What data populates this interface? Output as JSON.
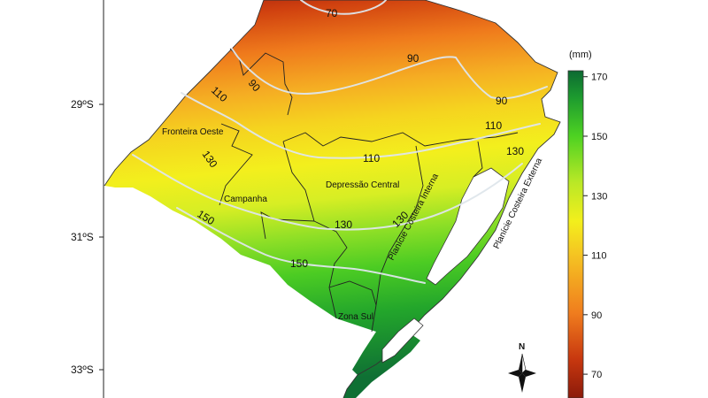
{
  "map": {
    "latitude_labels": [
      "29ºS",
      "31ºS",
      "33ºS"
    ],
    "isolines": [
      "70",
      "90",
      "90",
      "90",
      "110",
      "110",
      "110",
      "130",
      "130",
      "130",
      "130",
      "150",
      "150"
    ],
    "regions": [
      "Fronteira Oeste",
      "Campanha",
      "Depressão Central",
      "Planície Costeira Interna",
      "Planície Costeira Externa",
      "Zona Sul"
    ],
    "north_label": "N"
  },
  "legend": {
    "unit": "(mm)",
    "ticks": [
      170,
      150,
      130,
      110,
      90,
      70
    ],
    "range": [
      62,
      172
    ],
    "colors": {
      "low": "#8b1a0a",
      "mid_low": "#f07d1e",
      "mid": "#f3ef1c",
      "mid_high": "#4ed222",
      "high": "#0d6a32"
    }
  }
}
